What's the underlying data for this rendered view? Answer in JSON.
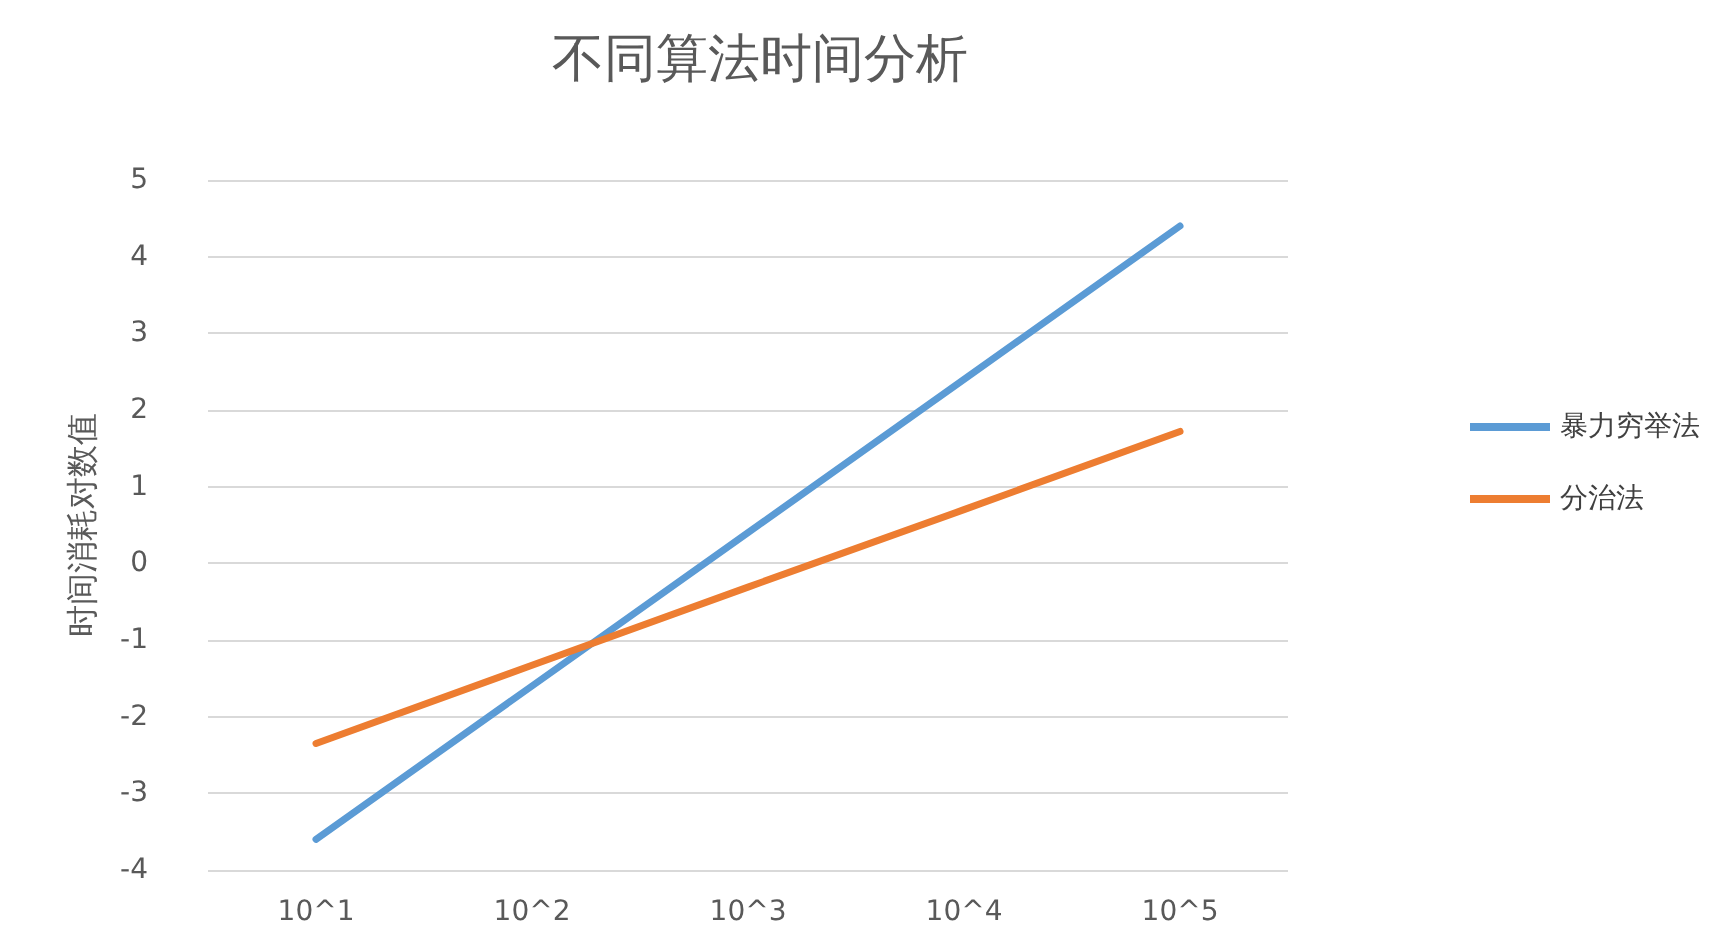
{
  "chart_data": {
    "type": "line",
    "title": "不同算法时间分析",
    "ylabel": "时间消耗对数值",
    "categories": [
      "10^1",
      "10^2",
      "10^3",
      "10^4",
      "10^5"
    ],
    "series": [
      {
        "name": "暴力穷举法",
        "color": "#5b9bd5",
        "values": [
          -3.6,
          -1.6,
          0.4,
          2.4,
          4.4
        ]
      },
      {
        "name": "分治法",
        "color": "#ed7d31",
        "values": [
          -2.35,
          -1.33,
          -0.31,
          0.7,
          1.72
        ]
      }
    ],
    "ylim": [
      -4,
      5
    ],
    "yticks": [
      -4,
      -3,
      -2,
      -1,
      0,
      1,
      2,
      3,
      4,
      5
    ],
    "grid": "y",
    "legend": "right",
    "marker": "none",
    "line_style": "solid"
  }
}
